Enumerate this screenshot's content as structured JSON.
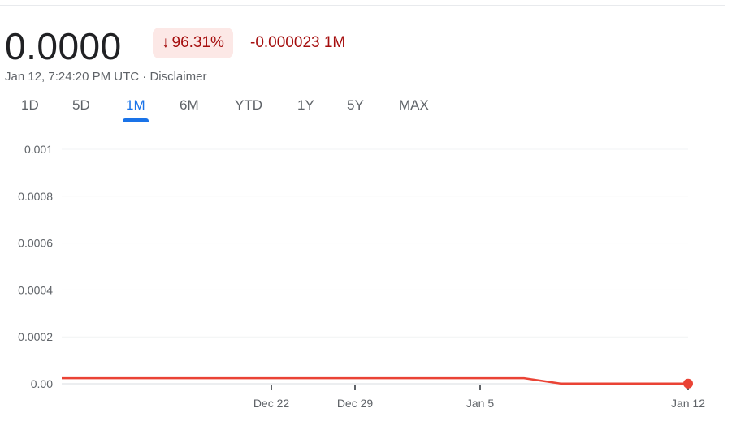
{
  "header": {
    "price": "0.0000",
    "change_percent": "96.31%",
    "change_direction_icon": "arrow-down-icon",
    "change_value": "-0.000023 1M",
    "timestamp": "Jan 12, 7:24:20 PM UTC",
    "separator": " · ",
    "disclaimer": "Disclaimer"
  },
  "tabs": [
    {
      "label": "1D"
    },
    {
      "label": "5D"
    },
    {
      "label": "1M",
      "active": true
    },
    {
      "label": "6M"
    },
    {
      "label": "YTD"
    },
    {
      "label": "1Y"
    },
    {
      "label": "5Y"
    },
    {
      "label": "MAX"
    }
  ],
  "colors": {
    "negative": "#a50e0e",
    "line": "#ea4335",
    "accent": "#1a73e8",
    "badge_bg": "#fce8e6"
  },
  "chart_data": {
    "type": "line",
    "yticks": [
      "0.001",
      "0.0008",
      "0.0006",
      "0.0004",
      "0.0002",
      "0.00"
    ],
    "ylim": [
      0,
      0.001
    ],
    "xticks": [
      "Dec 22",
      "Dec 29",
      "Jan 5",
      "Jan 12"
    ],
    "grid": true,
    "series": [
      {
        "values": [
          2.39e-05,
          2.39e-05,
          2.39e-05,
          2.39e-05,
          2.39e-05,
          8.8e-07,
          8.8e-07,
          8.8e-07
        ]
      }
    ]
  }
}
